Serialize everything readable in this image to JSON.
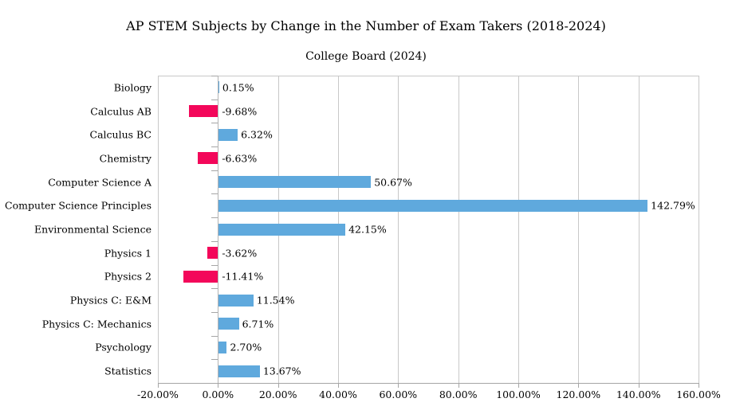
{
  "chart_data": {
    "type": "bar",
    "orientation": "horizontal",
    "title": "AP STEM Subjects by Change in the Number of Exam Takers (2018-2024)",
    "subtitle": "College Board (2024)",
    "categories": [
      "Biology",
      "Calculus AB",
      "Calculus BC",
      "Chemistry",
      "Computer Science A",
      "Computer Science Principles",
      "Environmental Science",
      "Physics 1",
      "Physics 2",
      "Physics C: E&M",
      "Physics C: Mechanics",
      "Psychology",
      "Statistics"
    ],
    "values": [
      0.15,
      -9.68,
      6.32,
      -6.63,
      50.67,
      142.79,
      42.15,
      -3.62,
      -11.41,
      11.54,
      6.71,
      2.7,
      13.67
    ],
    "value_labels": [
      "0.15%",
      "-9.68%",
      "6.32%",
      "-6.63%",
      "50.67%",
      "142.79%",
      "42.15%",
      "-3.62%",
      "-11.41%",
      "11.54%",
      "6.71%",
      "2.70%",
      "13.67%"
    ],
    "xlim": [
      -20,
      160
    ],
    "x_ticks": [
      {
        "value": -20,
        "label": "-20.00%"
      },
      {
        "value": 0,
        "label": "0.00%"
      },
      {
        "value": 20,
        "label": "20.00%"
      },
      {
        "value": 40,
        "label": "40.00%"
      },
      {
        "value": 60,
        "label": "60.00%"
      },
      {
        "value": 80,
        "label": "80.00%"
      },
      {
        "value": 100,
        "label": "100.00%"
      },
      {
        "value": 120,
        "label": "120.00%"
      },
      {
        "value": 140,
        "label": "140.00%"
      },
      {
        "value": 160,
        "label": "160.00%"
      }
    ],
    "grid": true,
    "legend_position": "none",
    "colors": {
      "positive_bar": "#5fa9dd",
      "negative_bar": "#f3075a",
      "gridline": "#c8c8c8",
      "axis_line": "#a6a6a6",
      "text": "#000000",
      "background": "#ffffff"
    }
  }
}
